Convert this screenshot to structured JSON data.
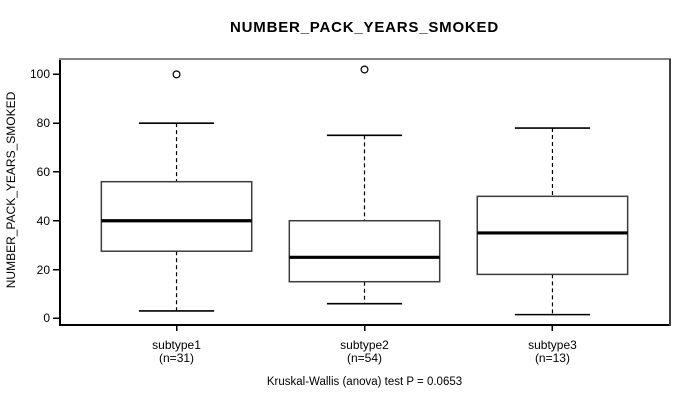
{
  "page": {
    "background": "#ffffff"
  },
  "chart_data": {
    "type": "boxplot",
    "title": "NUMBER_PACK_YEARS_SMOKED",
    "ylabel": "NUMBER_PACK_YEARS_SMOKED",
    "caption": "Kruskal-Wallis (anova) test P = 0.0653",
    "yticks": [
      0,
      20,
      40,
      60,
      80,
      100
    ],
    "ylim": [
      -2.75,
      106.3
    ],
    "grid": false,
    "legend": "none",
    "groups": [
      {
        "label": "subtype1",
        "count_label": "(n=31)",
        "n": 31,
        "whisker_low": 3,
        "q1": 27.5,
        "median": 40,
        "q3": 56,
        "whisker_high": 80,
        "outliers": [
          100
        ]
      },
      {
        "label": "subtype2",
        "count_label": "(n=54)",
        "n": 54,
        "whisker_low": 6,
        "q1": 15,
        "median": 25,
        "q3": 40,
        "whisker_high": 75,
        "outliers": [
          102
        ]
      },
      {
        "label": "subtype3",
        "count_label": "(n=13)",
        "n": 13,
        "whisker_low": 1.5,
        "q1": 18,
        "median": 35,
        "q3": 50,
        "whisker_high": 78,
        "outliers": []
      }
    ],
    "colors": {
      "line": "#000000",
      "box_border": "#3c3c3c",
      "box_fill": "#ffffff",
      "frame_top": "#828282",
      "frame_right": "#3f3f3f",
      "frame_dark": "#000000"
    }
  }
}
